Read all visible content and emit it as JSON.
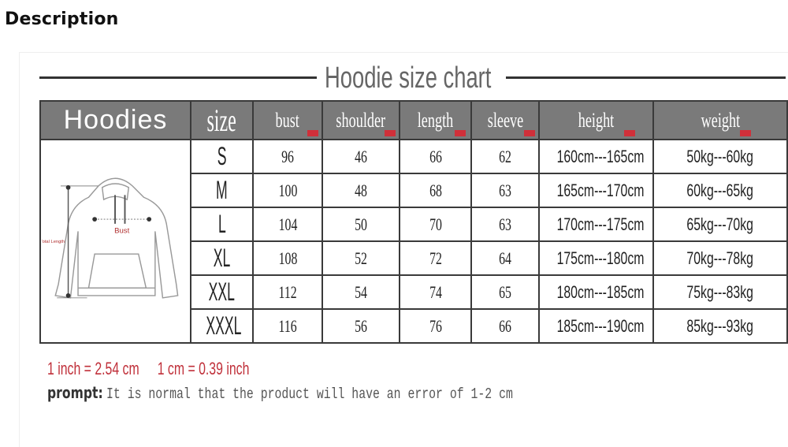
{
  "section_title": "Description",
  "chart_title": "Hoodie size chart",
  "table": {
    "headers": [
      "Hoodies",
      "size",
      "bust",
      "shoulder",
      "length",
      "sleeve",
      "height",
      "weight"
    ],
    "rows": [
      {
        "size": "S",
        "bust": "96",
        "shoulder": "46",
        "length": "66",
        "sleeve": "62",
        "height": "160cm---165cm",
        "weight": "50kg---60kg"
      },
      {
        "size": "M",
        "bust": "100",
        "shoulder": "48",
        "length": "68",
        "sleeve": "63",
        "height": "165cm---170cm",
        "weight": "60kg---65kg"
      },
      {
        "size": "L",
        "bust": "104",
        "shoulder": "50",
        "length": "70",
        "sleeve": "63",
        "height": "170cm---175cm",
        "weight": "65kg---70kg"
      },
      {
        "size": "XL",
        "bust": "108",
        "shoulder": "52",
        "length": "72",
        "sleeve": "64",
        "height": "175cm---180cm",
        "weight": "70kg---78kg"
      },
      {
        "size": "XXL",
        "bust": "112",
        "shoulder": "54",
        "length": "74",
        "sleeve": "65",
        "height": "180cm---185cm",
        "weight": "75kg---83kg"
      },
      {
        "size": "XXXL",
        "bust": "116",
        "shoulder": "56",
        "length": "76",
        "sleeve": "66",
        "height": "185cm---190cm",
        "weight": "85kg---93kg"
      }
    ],
    "illustration": {
      "bust_label": "Bust",
      "length_label": "Total Length"
    }
  },
  "conversion": [
    "1 inch = 2.54 cm",
    "1 cm = 0.39 inch"
  ],
  "prompt": {
    "label": "prompt:",
    "text": "It is normal that the product will have an error of 1-2 cm"
  },
  "colors": {
    "header_bg": "#7a7a7a",
    "unit_mark": "#d0303a",
    "conversion_text": "#c0303a"
  }
}
